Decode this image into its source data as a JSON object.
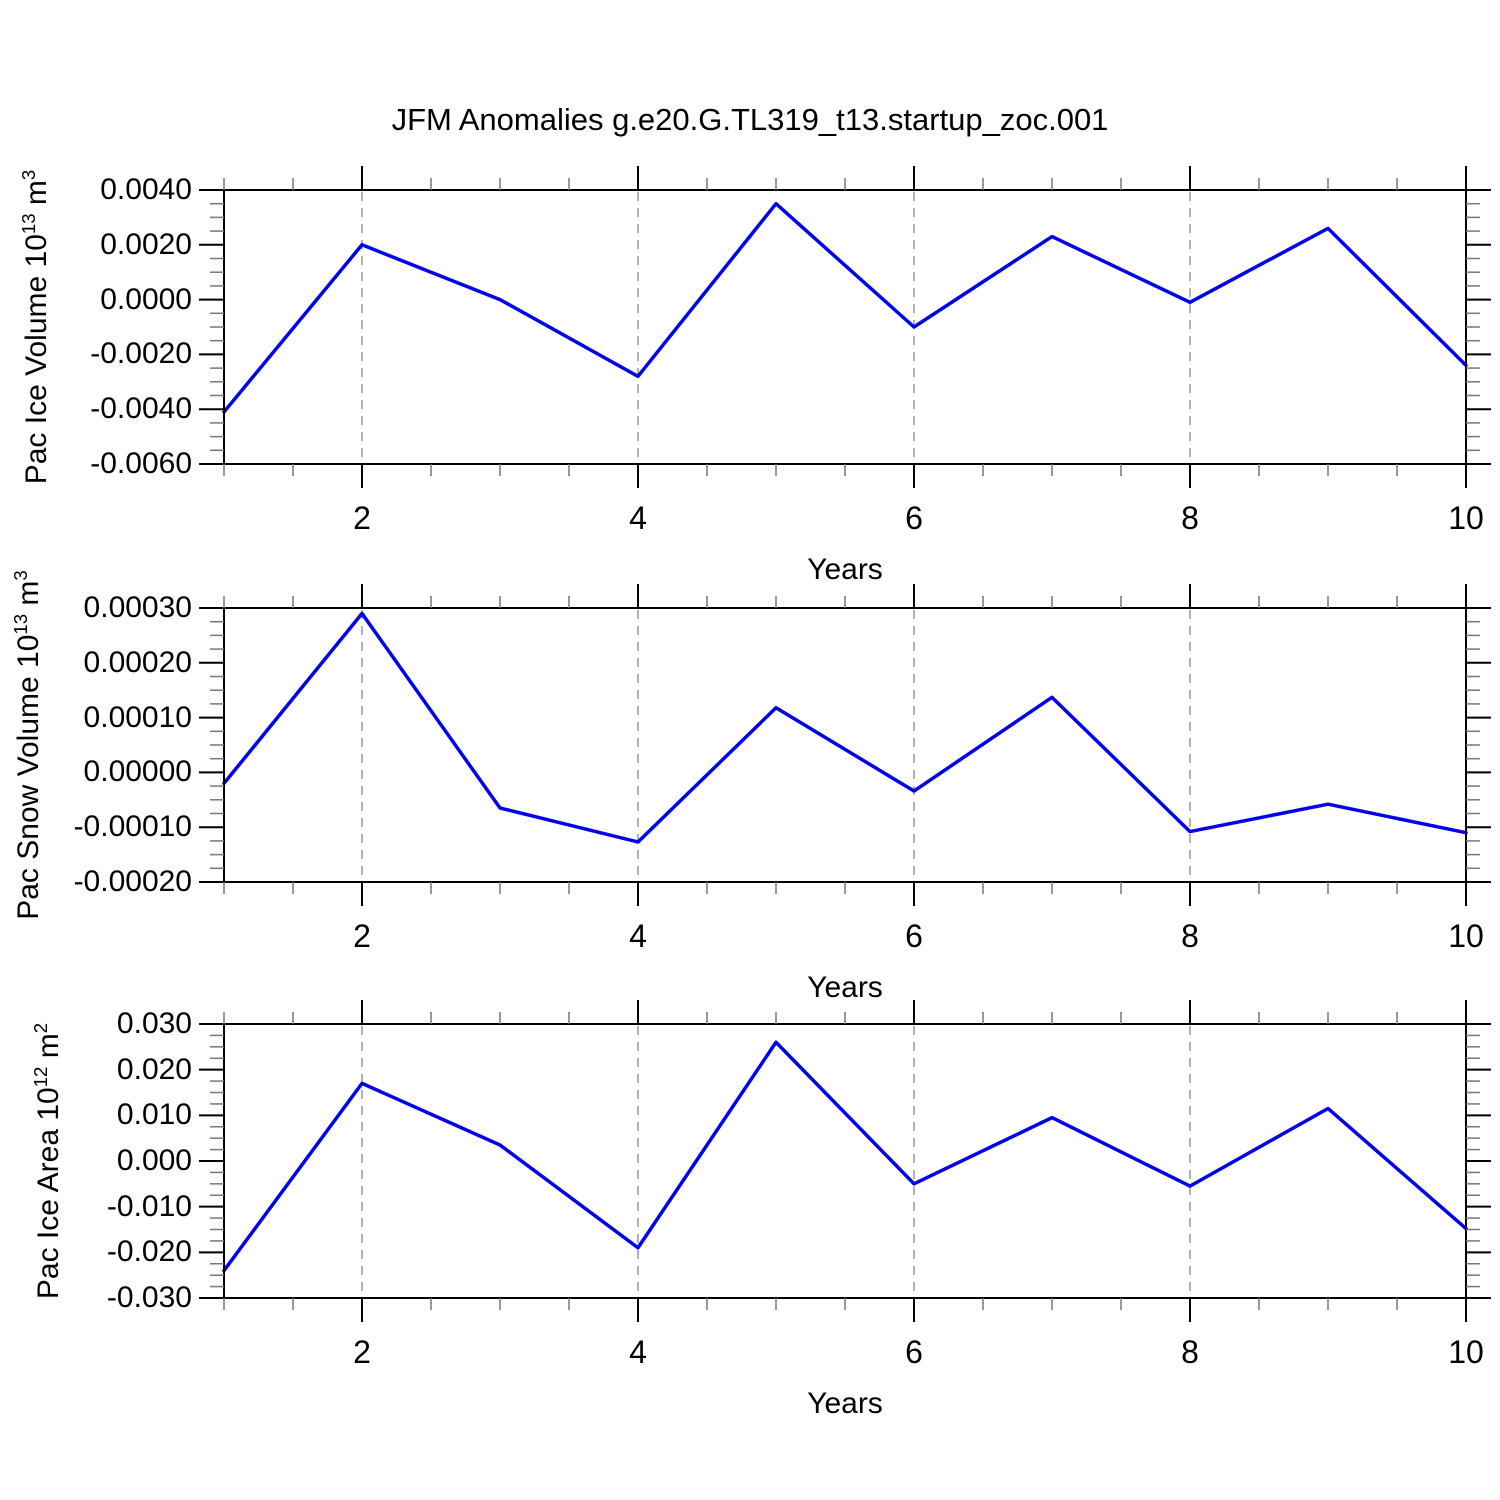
{
  "title": "JFM Anomalies g.e20.G.TL319_t13.startup_zoc.001",
  "colors": {
    "background": "#FFFFFF",
    "line": "#0000EE",
    "axis": "#000000",
    "major_tick": "#000000",
    "minor_tick": "#777777",
    "gridline": "#999999",
    "text": "#000000"
  },
  "chart_data": [
    {
      "type": "line",
      "panel": "pac-ice-volume",
      "ylabel": "Pac Ice Volume 10^13 m^3",
      "ylabel_segments": [
        {
          "t": "Pac Ice Volume 10"
        },
        {
          "t": "13",
          "sup": true
        },
        {
          "t": " m"
        },
        {
          "t": "3",
          "sup": true
        }
      ],
      "xlabel": "Years",
      "x": [
        1,
        2,
        3,
        4,
        5,
        6,
        7,
        8,
        9,
        10
      ],
      "values": [
        -0.0041,
        0.002,
        0.0,
        -0.0028,
        0.0035,
        -0.001,
        0.0023,
        -0.0001,
        0.0026,
        -0.0024
      ],
      "xlim": [
        1,
        10
      ],
      "ylim": [
        -0.006,
        0.004
      ],
      "yticks": [
        {
          "value": 0.004,
          "label": "0.0040"
        },
        {
          "value": 0.002,
          "label": "0.0020"
        },
        {
          "value": 0.0,
          "label": "0.0000"
        },
        {
          "value": -0.002,
          "label": "-0.0020"
        },
        {
          "value": -0.004,
          "label": "-0.0040"
        },
        {
          "value": -0.006,
          "label": "-0.0060"
        }
      ],
      "xticks": [
        {
          "value": 2,
          "label": "2"
        },
        {
          "value": 4,
          "label": "4"
        },
        {
          "value": 6,
          "label": "6"
        },
        {
          "value": 8,
          "label": "8"
        },
        {
          "value": 10,
          "label": "10"
        }
      ],
      "minor_y_step": 0.0005,
      "minor_x_step": 0.5,
      "grid_x": [
        2,
        4,
        6,
        8
      ],
      "grid_style": "vertical-dashed",
      "legend": "none"
    },
    {
      "type": "line",
      "panel": "pac-snow-volume",
      "ylabel": "Pac Snow Volume 10^13 m^3",
      "ylabel_segments": [
        {
          "t": "Pac Snow Volume 10"
        },
        {
          "t": "13",
          "sup": true
        },
        {
          "t": " m"
        },
        {
          "t": "3",
          "sup": true
        }
      ],
      "xlabel": "Years",
      "x": [
        1,
        2,
        3,
        4,
        5,
        6,
        7,
        8,
        9,
        10
      ],
      "values": [
        -2e-05,
        0.00029,
        -6.5e-05,
        -0.000127,
        0.000118,
        -3.4e-05,
        0.000137,
        -0.000108,
        -5.8e-05,
        -0.00011
      ],
      "xlim": [
        1,
        10
      ],
      "ylim": [
        -0.0002,
        0.0003
      ],
      "yticks": [
        {
          "value": 0.0003,
          "label": "0.00030"
        },
        {
          "value": 0.0002,
          "label": "0.00020"
        },
        {
          "value": 0.0001,
          "label": "0.00010"
        },
        {
          "value": 0.0,
          "label": "0.00000"
        },
        {
          "value": -0.0001,
          "label": "-0.00010"
        },
        {
          "value": -0.0002,
          "label": "-0.00020"
        }
      ],
      "xticks": [
        {
          "value": 2,
          "label": "2"
        },
        {
          "value": 4,
          "label": "4"
        },
        {
          "value": 6,
          "label": "6"
        },
        {
          "value": 8,
          "label": "8"
        },
        {
          "value": 10,
          "label": "10"
        }
      ],
      "minor_y_step": 2.5e-05,
      "minor_x_step": 0.5,
      "grid_x": [
        2,
        4,
        6,
        8
      ],
      "grid_style": "vertical-dashed",
      "legend": "none"
    },
    {
      "type": "line",
      "panel": "pac-ice-area",
      "ylabel": "Pac Ice Area 10^12 m^2",
      "ylabel_segments": [
        {
          "t": "Pac Ice Area 10"
        },
        {
          "t": "12",
          "sup": true
        },
        {
          "t": " m"
        },
        {
          "t": "2",
          "sup": true
        }
      ],
      "xlabel": "Years",
      "x": [
        1,
        2,
        3,
        4,
        5,
        6,
        7,
        8,
        9,
        10
      ],
      "values": [
        -0.024,
        0.017,
        0.0035,
        -0.019,
        0.026,
        -0.005,
        0.0095,
        -0.0055,
        0.0115,
        -0.0148
      ],
      "xlim": [
        1,
        10
      ],
      "ylim": [
        -0.03,
        0.03
      ],
      "yticks": [
        {
          "value": 0.03,
          "label": "0.030"
        },
        {
          "value": 0.02,
          "label": "0.020"
        },
        {
          "value": 0.01,
          "label": "0.010"
        },
        {
          "value": 0.0,
          "label": "0.000"
        },
        {
          "value": -0.01,
          "label": "-0.010"
        },
        {
          "value": -0.02,
          "label": "-0.020"
        },
        {
          "value": -0.03,
          "label": "-0.030"
        }
      ],
      "xticks": [
        {
          "value": 2,
          "label": "2"
        },
        {
          "value": 4,
          "label": "4"
        },
        {
          "value": 6,
          "label": "6"
        },
        {
          "value": 8,
          "label": "8"
        },
        {
          "value": 10,
          "label": "10"
        }
      ],
      "minor_y_step": 0.0025,
      "minor_x_step": 0.5,
      "grid_x": [
        2,
        4,
        6,
        8
      ],
      "grid_style": "vertical-dashed",
      "legend": "none"
    }
  ]
}
